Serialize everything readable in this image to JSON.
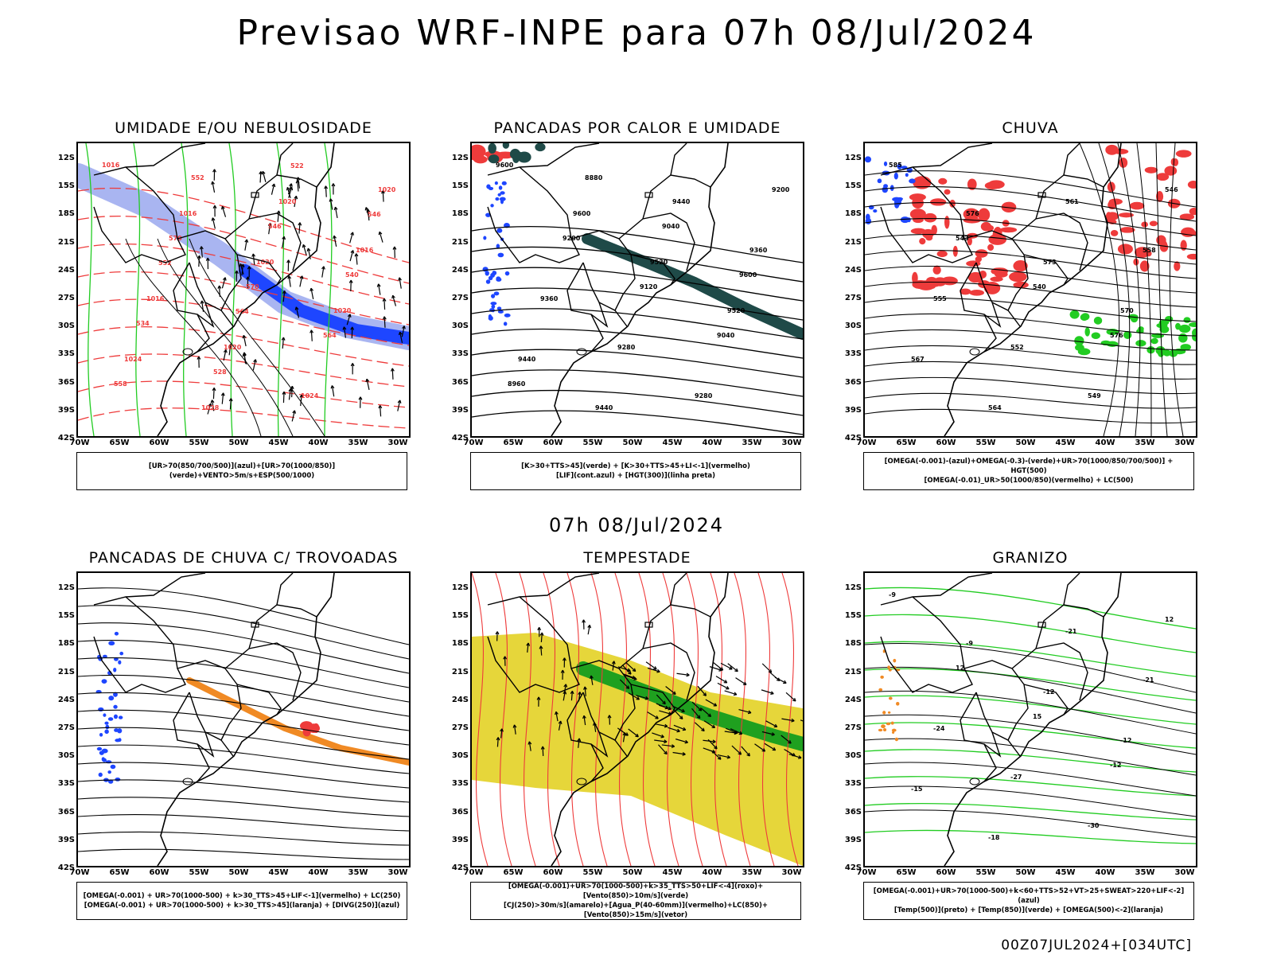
{
  "header": {
    "title": "Previsao WRF-INPE  para 07h 08/Jul/2024"
  },
  "middle_date": "07h 08/Jul/2024",
  "footer": {
    "run_info": "00Z07JUL2024+[034UTC]"
  },
  "axes": {
    "lat_labels": [
      "12S",
      "15S",
      "18S",
      "21S",
      "24S",
      "27S",
      "30S",
      "33S",
      "36S",
      "39S",
      "42S"
    ],
    "lon_labels": [
      "70W",
      "65W",
      "60W",
      "55W",
      "50W",
      "45W",
      "40W",
      "35W",
      "30W"
    ]
  },
  "colors": {
    "red": "#ee3b3b",
    "green": "#22cc22",
    "blue": "#1e46ff",
    "lightblue": "#9aa8ee",
    "darkteal": "#1f4a48",
    "orange": "#f08a24",
    "yellow": "#e6d63a",
    "black": "#000000"
  },
  "panels": [
    {
      "id": "umidade",
      "title": "UMIDADE E/OU NEBULOSIDADE",
      "legend": [
        "[UR>70(850/700/500)](azul)+[UR>70(1000/850)](verde)+VENTO>5m/s+ESP(500/1000)"
      ],
      "contour_labels": [
        "1016",
        "1016",
        "1020",
        "1020",
        "1024",
        "1028",
        "1020",
        "1016",
        "1016",
        "1020",
        "1024",
        "1020",
        "570",
        "570",
        "564",
        "558",
        "552",
        "546",
        "540",
        "534",
        "528",
        "522",
        "546",
        "552",
        "564"
      ]
    },
    {
      "id": "pancadas_calor",
      "title": "PANCADAS POR CALOR E UMIDADE",
      "legend": [
        "[K>30+TTS>45](verde) + [K>30+TTS>45+LI<-1](vermelho)",
        "[LIF](cont.azul) + [HGT(300)](linha preta)"
      ],
      "contour_labels": [
        "9600",
        "9600",
        "9520",
        "9520",
        "9440",
        "9440",
        "9440",
        "9360",
        "9360",
        "9280",
        "9280",
        "9200",
        "9200",
        "9120",
        "9040",
        "8960",
        "8880",
        "9040",
        "9600"
      ]
    },
    {
      "id": "chuva",
      "title": "CHUVA",
      "legend": [
        "[OMEGA(-0.001)-(azul)+OMEGA(-0.3)-(verde)+UR>70(1000/850/700/500)] + HGT(500)",
        "[OMEGA(-0.01)_UR>50(1000/850)(vermelho) + LC(500)"
      ],
      "contour_labels": [
        "585",
        "576",
        "573",
        "570",
        "567",
        "564",
        "561",
        "558",
        "555",
        "552",
        "549",
        "546",
        "543",
        "540",
        "576"
      ]
    },
    {
      "id": "pancadas_trovoadas",
      "title": "PANCADAS DE CHUVA C/ TROVOADAS",
      "legend": [
        "[OMEGA(-0.001) + UR>70(1000-500) + k>30_TTS>45+LIF<-1](vermelho) + LC(250)",
        "[OMEGA(-0.001) + UR>70(1000-500) + k>30_TTS>45](laranja) + [DIVG(250)](azul)"
      ],
      "contour_labels": []
    },
    {
      "id": "tempestade",
      "title": "TEMPESTADE",
      "legend": [
        "[OMEGA(-0.001)+UR>70(1000-500)+k>35_TTS>50+LIF<-4](roxo)+[Vento(850)>10m/s](verde)",
        "[CJ(250)>30m/s](amarelo)+[Agua_P(40-60mm)](vermelho)+LC(850)+[Vento(850)>15m/s](vetor)"
      ],
      "contour_labels": []
    },
    {
      "id": "granizo",
      "title": "GRANIZO",
      "legend": [
        "[OMEGA(-0.001)+UR>70(1000-500)+k<60+TTS>52+VT>25+SWEAT>220+LIF<-2](azul)",
        "[Temp(500)](preto) + [Temp(850)](verde) + [OMEGA(500)<-2](laranja)"
      ],
      "contour_labels": [
        "-9",
        "-9",
        "-12",
        "-12",
        "-15",
        "-18",
        "-21",
        "-21",
        "-24",
        "-27",
        "-30",
        "12",
        "12",
        "15",
        "-12"
      ]
    }
  ]
}
